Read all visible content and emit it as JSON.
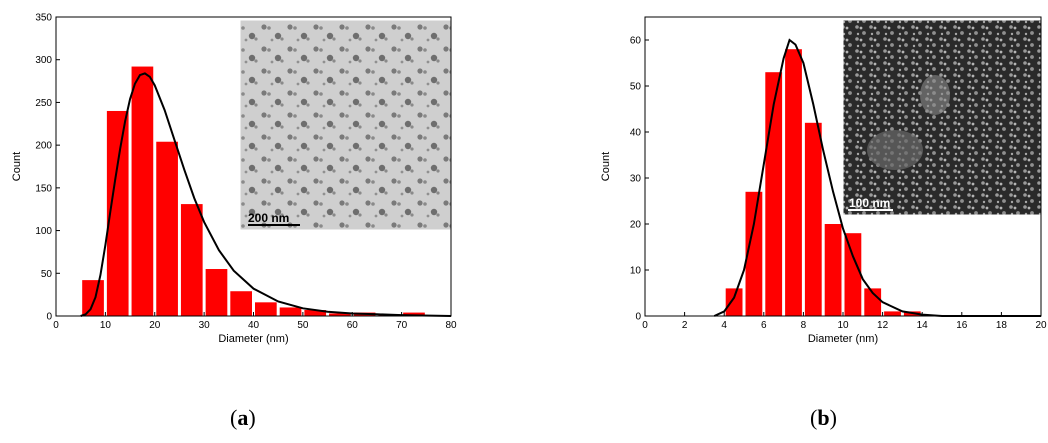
{
  "chart_data": [
    {
      "type": "bar",
      "panel_label": "a",
      "xlabel": "Diameter (nm)",
      "ylabel": "Count",
      "xlim": [
        0,
        80
      ],
      "ylim": [
        0,
        350
      ],
      "xticks": [
        0,
        10,
        20,
        30,
        40,
        50,
        60,
        70,
        80
      ],
      "yticks": [
        0,
        50,
        100,
        150,
        200,
        250,
        300,
        350
      ],
      "bar_color": "#ff0000",
      "bin_width": 5,
      "bins": [
        {
          "x": 7.5,
          "y": 42
        },
        {
          "x": 12.5,
          "y": 240
        },
        {
          "x": 17.5,
          "y": 292
        },
        {
          "x": 22.5,
          "y": 204
        },
        {
          "x": 27.5,
          "y": 131
        },
        {
          "x": 32.5,
          "y": 55
        },
        {
          "x": 37.5,
          "y": 29
        },
        {
          "x": 42.5,
          "y": 16
        },
        {
          "x": 47.5,
          "y": 10
        },
        {
          "x": 52.5,
          "y": 7
        },
        {
          "x": 57.5,
          "y": 3
        },
        {
          "x": 62.5,
          "y": 4
        },
        {
          "x": 67.5,
          "y": 2
        },
        {
          "x": 72.5,
          "y": 4
        },
        {
          "x": 77.5,
          "y": 1
        }
      ],
      "fit": {
        "type": "lognormal",
        "color": "#000000",
        "curve": [
          {
            "x": 5,
            "y": 0
          },
          {
            "x": 6,
            "y": 2
          },
          {
            "x": 7,
            "y": 8
          },
          {
            "x": 8,
            "y": 22
          },
          {
            "x": 9,
            "y": 48
          },
          {
            "x": 10,
            "y": 83
          },
          {
            "x": 11,
            "y": 122
          },
          {
            "x": 12,
            "y": 160
          },
          {
            "x": 13,
            "y": 196
          },
          {
            "x": 14,
            "y": 228
          },
          {
            "x": 15,
            "y": 254
          },
          {
            "x": 16,
            "y": 272
          },
          {
            "x": 17,
            "y": 282
          },
          {
            "x": 18,
            "y": 284
          },
          {
            "x": 19,
            "y": 280
          },
          {
            "x": 20,
            "y": 270
          },
          {
            "x": 22,
            "y": 241
          },
          {
            "x": 24,
            "y": 206
          },
          {
            "x": 26,
            "y": 171
          },
          {
            "x": 28,
            "y": 138
          },
          {
            "x": 30,
            "y": 110
          },
          {
            "x": 33,
            "y": 77
          },
          {
            "x": 36,
            "y": 53
          },
          {
            "x": 40,
            "y": 32
          },
          {
            "x": 45,
            "y": 17
          },
          {
            "x": 50,
            "y": 9
          },
          {
            "x": 55,
            "y": 5
          },
          {
            "x": 60,
            "y": 3
          },
          {
            "x": 65,
            "y": 2
          },
          {
            "x": 70,
            "y": 1
          },
          {
            "x": 80,
            "y": 0
          }
        ]
      },
      "inset": {
        "scale_bar_label": "200 nm",
        "style": "light"
      }
    },
    {
      "type": "bar",
      "panel_label": "b",
      "xlabel": "Diameter (nm)",
      "ylabel": "Count",
      "xlim": [
        0,
        20
      ],
      "ylim": [
        0,
        65
      ],
      "xticks": [
        0,
        2,
        4,
        6,
        8,
        10,
        12,
        14,
        16,
        18,
        20
      ],
      "yticks": [
        0,
        10,
        20,
        30,
        40,
        50,
        60
      ],
      "bar_color": "#ff0000",
      "bin_width": 1,
      "bins": [
        {
          "x": 4.5,
          "y": 6
        },
        {
          "x": 5.5,
          "y": 27
        },
        {
          "x": 6.5,
          "y": 53
        },
        {
          "x": 7.5,
          "y": 58
        },
        {
          "x": 8.5,
          "y": 42
        },
        {
          "x": 9.5,
          "y": 20
        },
        {
          "x": 10.5,
          "y": 18
        },
        {
          "x": 11.5,
          "y": 6
        },
        {
          "x": 12.5,
          "y": 1
        },
        {
          "x": 13.5,
          "y": 1
        }
      ],
      "fit": {
        "type": "lognormal",
        "color": "#000000",
        "curve": [
          {
            "x": 3.5,
            "y": 0
          },
          {
            "x": 4,
            "y": 1
          },
          {
            "x": 4.5,
            "y": 4
          },
          {
            "x": 5,
            "y": 10
          },
          {
            "x": 5.5,
            "y": 20
          },
          {
            "x": 6,
            "y": 33
          },
          {
            "x": 6.5,
            "y": 46
          },
          {
            "x": 7,
            "y": 56
          },
          {
            "x": 7.3,
            "y": 60
          },
          {
            "x": 7.6,
            "y": 59
          },
          {
            "x": 8,
            "y": 55
          },
          {
            "x": 8.5,
            "y": 46
          },
          {
            "x": 9,
            "y": 36
          },
          {
            "x": 9.5,
            "y": 27
          },
          {
            "x": 10,
            "y": 19
          },
          {
            "x": 10.5,
            "y": 13
          },
          {
            "x": 11,
            "y": 8
          },
          {
            "x": 11.5,
            "y": 5
          },
          {
            "x": 12,
            "y": 3
          },
          {
            "x": 13,
            "y": 1
          },
          {
            "x": 14,
            "y": 0.3
          },
          {
            "x": 15,
            "y": 0
          },
          {
            "x": 20,
            "y": 0
          }
        ]
      },
      "inset": {
        "scale_bar_label": "100 nm",
        "style": "dark"
      }
    }
  ]
}
